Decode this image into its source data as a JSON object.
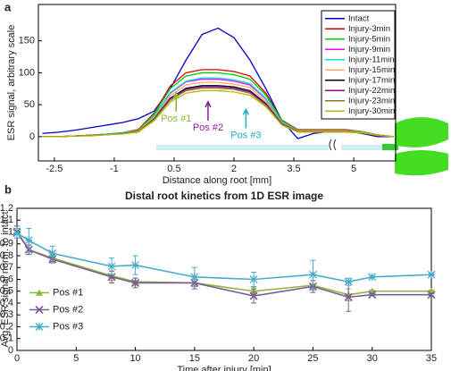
{
  "panel_labels": [
    "a",
    "b"
  ],
  "chart_data": [
    {
      "type": "line",
      "xlabel": "Distance along root [mm]",
      "ylabel": "ESR signal, arbitrary scale",
      "xlim": [
        -2.9,
        6.05
      ],
      "ylim": [
        -38,
        207
      ],
      "xticks": [
        -2.5,
        -1,
        0.5,
        2,
        3.5,
        5
      ],
      "yticks": [
        0,
        50,
        100,
        150
      ],
      "legend": "upper right",
      "x": [
        -2.8,
        -2.4,
        -2,
        -1.6,
        -1.2,
        -0.8,
        -0.4,
        0,
        0.4,
        0.8,
        1.2,
        1.6,
        2.0,
        2.4,
        2.8,
        3.2,
        3.6,
        4.0,
        4.4,
        4.8,
        5.2,
        5.6,
        6.0
      ],
      "series": [
        {
          "name": "Intact",
          "color": "#0000cc",
          "values": [
            5,
            7,
            10,
            14,
            18,
            22,
            28,
            40,
            75,
            120,
            160,
            170,
            155,
            120,
            75,
            25,
            -3,
            5,
            8,
            9,
            5,
            0,
            0
          ]
        },
        {
          "name": "Injury-3min",
          "color": "#e00000",
          "values": [
            0,
            0,
            1,
            2,
            4,
            6,
            11,
            37,
            79,
            100,
            105,
            105,
            102,
            95,
            68,
            26,
            11,
            11,
            11,
            11,
            8,
            3,
            0
          ]
        },
        {
          "name": "Injury-5min",
          "color": "#00cc00",
          "values": [
            0,
            0,
            1,
            2,
            4,
            6,
            10,
            35,
            75,
            95,
            100,
            100,
            97,
            90,
            65,
            25,
            10,
            10,
            10,
            10,
            8,
            3,
            0
          ]
        },
        {
          "name": "Injury-9min",
          "color": "#ff00ff",
          "values": [
            0,
            0,
            1,
            2,
            4,
            5,
            9,
            32,
            68,
            86,
            90,
            90,
            87,
            81,
            59,
            23,
            9,
            9,
            9,
            9,
            7,
            3,
            0
          ]
        },
        {
          "name": "Injury-11min",
          "color": "#00e0e0",
          "values": [
            0,
            0,
            1,
            2,
            4,
            6,
            9,
            32,
            69,
            87,
            92,
            92,
            89,
            83,
            60,
            23,
            9,
            9,
            9,
            9,
            7,
            3,
            0
          ]
        },
        {
          "name": "Injury-15min",
          "color": "#ffaa66",
          "values": [
            0,
            0,
            1,
            2,
            3,
            5,
            9,
            30,
            64,
            81,
            85,
            85,
            82,
            77,
            55,
            21,
            9,
            9,
            9,
            9,
            7,
            3,
            0
          ]
        },
        {
          "name": "Injury-17min",
          "color": "#000000",
          "values": [
            0,
            0,
            1,
            2,
            3,
            5,
            8,
            28,
            60,
            76,
            80,
            80,
            78,
            72,
            52,
            20,
            8,
            8,
            8,
            8,
            6,
            2,
            0
          ]
        },
        {
          "name": "Injury-22min",
          "color": "#9900aa",
          "values": [
            0,
            0,
            1,
            2,
            3,
            5,
            8,
            27,
            59,
            74,
            78,
            78,
            76,
            70,
            51,
            20,
            8,
            8,
            8,
            8,
            6,
            2,
            0
          ]
        },
        {
          "name": "Injury-23min",
          "color": "#8b7a2a",
          "values": [
            0,
            0,
            1,
            2,
            3,
            5,
            8,
            27,
            57,
            72,
            76,
            76,
            74,
            68,
            49,
            19,
            8,
            8,
            8,
            8,
            6,
            2,
            0
          ]
        },
        {
          "name": "Injury-30min",
          "color": "#b8b800",
          "values": [
            0,
            0,
            1,
            1,
            3,
            4,
            7,
            25,
            54,
            68,
            72,
            72,
            70,
            65,
            47,
            18,
            7,
            7,
            7,
            7,
            6,
            2,
            0
          ]
        }
      ],
      "annotations": [
        {
          "text": "Pos #1",
          "x": 0.55,
          "y": 28,
          "color": "#88bb33"
        },
        {
          "text": "Pos #2",
          "x": 1.35,
          "y": 14,
          "color": "#882299"
        },
        {
          "text": "Pos #3",
          "x": 2.3,
          "y": 2,
          "color": "#22aacc"
        }
      ]
    },
    {
      "type": "line",
      "title": "Distal root kinetics from 1D ESR image",
      "xlabel": "Time after injury [min]",
      "ylabel": "Avg. ESR signal norm. to intact",
      "xlim": [
        0,
        35
      ],
      "ylim": [
        0,
        1.2
      ],
      "xticks": [
        0,
        5,
        10,
        15,
        20,
        25,
        30,
        35
      ],
      "yticks": [
        0,
        0.1,
        0.2,
        0.3,
        0.4,
        0.5,
        0.6,
        0.7,
        0.8,
        0.9,
        1,
        1.1,
        1.2
      ],
      "legend": "lower left",
      "x": [
        0,
        1,
        3,
        8,
        10,
        15,
        20,
        25,
        28,
        30,
        35
      ],
      "series": [
        {
          "name": "Pos #1",
          "color": "#8db53c",
          "marker": "^",
          "values": [
            1.0,
            0.85,
            0.78,
            0.63,
            0.58,
            0.57,
            0.5,
            0.55,
            0.47,
            0.5,
            0.5
          ],
          "errors": [
            0.05,
            0.04,
            0.03,
            0.04,
            0.03,
            0.03,
            0.03,
            0.04,
            0.05,
            0.01,
            0.01
          ]
        },
        {
          "name": "Pos #2",
          "color": "#7d5c96",
          "marker": "x",
          "values": [
            1.0,
            0.85,
            0.77,
            0.62,
            0.57,
            0.57,
            0.46,
            0.54,
            0.45,
            0.47,
            0.47
          ],
          "errors": [
            0.05,
            0.04,
            0.03,
            0.05,
            0.04,
            0.05,
            0.06,
            0.05,
            0.12,
            0.01,
            0.01
          ]
        },
        {
          "name": "Pos #3",
          "color": "#4aaccc",
          "marker": "*",
          "values": [
            0.99,
            0.93,
            0.82,
            0.71,
            0.72,
            0.62,
            0.6,
            0.64,
            0.58,
            0.62,
            0.64
          ],
          "errors": [
            0.04,
            0.1,
            0.06,
            0.07,
            0.08,
            0.08,
            0.06,
            0.12,
            0.03,
            0.01,
            0.01
          ]
        }
      ]
    }
  ]
}
